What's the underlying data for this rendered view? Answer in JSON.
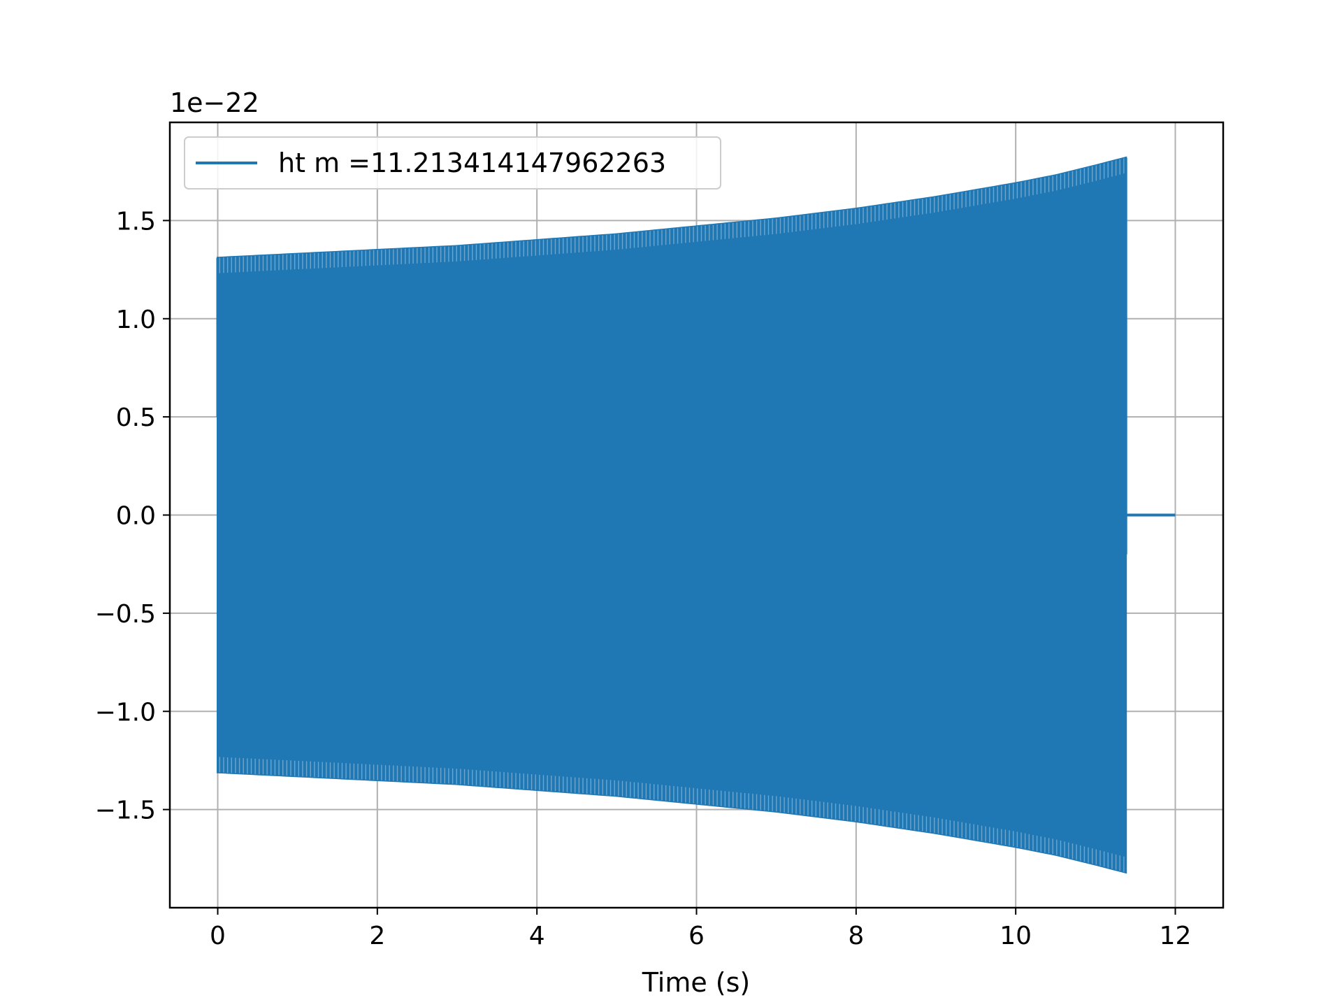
{
  "chart_data": {
    "type": "line",
    "title": "",
    "xlabel": "Time (s)",
    "ylabel": "",
    "y_offset_label": "1e−22",
    "xlim": [
      -0.6,
      12.6
    ],
    "ylim": [
      -2.0,
      2.0
    ],
    "x_ticks": [
      0,
      2,
      4,
      6,
      8,
      10,
      12
    ],
    "x_tick_labels": [
      "0",
      "2",
      "4",
      "6",
      "8",
      "10",
      "12"
    ],
    "y_ticks": [
      1.5,
      1.0,
      0.5,
      0.0,
      -0.5,
      -1.0,
      -1.5
    ],
    "y_tick_labels": [
      "1.5",
      "1.0",
      "0.5",
      "0.0",
      "−0.5",
      "−1.0",
      "−1.5"
    ],
    "grid": true,
    "legend_position": "top-left",
    "series": [
      {
        "name": "ht m =11.213414147962263",
        "color": "#1f77b4",
        "signal_start": 0.0,
        "signal_end": 11.38,
        "series_end": 12.0,
        "initial_value": 0.5,
        "final_value": -0.2,
        "envelope": {
          "t": [
            0,
            1,
            2,
            3,
            4,
            5,
            6,
            7,
            8,
            9,
            10,
            10.5,
            11,
            11.38
          ],
          "upper": [
            1.31,
            1.33,
            1.35,
            1.37,
            1.4,
            1.43,
            1.47,
            1.51,
            1.56,
            1.62,
            1.69,
            1.73,
            1.78,
            1.82
          ],
          "lower": [
            -1.31,
            -1.33,
            -1.35,
            -1.37,
            -1.4,
            -1.43,
            -1.47,
            -1.51,
            -1.56,
            -1.62,
            -1.69,
            -1.73,
            -1.78,
            -1.82
          ]
        },
        "visible_cycles": 230
      }
    ]
  }
}
